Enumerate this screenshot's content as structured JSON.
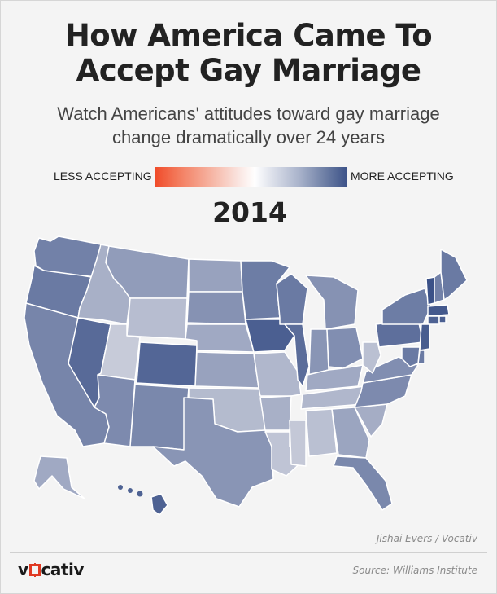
{
  "title_line1": "How America Came To",
  "title_line2": "Accept Gay Marriage",
  "subtitle_line1": "Watch Americans' attitudes toward gay marriage",
  "subtitle_line2": "change dramatically over 24 years",
  "legend": {
    "left_label": "LESS ACCEPTING",
    "right_label": "MORE ACCEPTING"
  },
  "year": "2014",
  "credit": "Jishai Evers / Vocativ",
  "brand": {
    "pre": "v",
    "post": "cativ"
  },
  "source": "Source: Williams Institute",
  "color_scale": {
    "low": "#f04a28",
    "mid": "#ffffff",
    "high": "#3c5288",
    "accent": "#e03a24"
  },
  "map": {
    "acceptance": {
      "WA": 0.65,
      "OR": 0.7,
      "CA": 0.62,
      "NV": 0.82,
      "ID": 0.3,
      "MT": 0.45,
      "WY": 0.2,
      "UT": 0.1,
      "AZ": 0.58,
      "CO": 0.85,
      "NM": 0.6,
      "ND": 0.4,
      "SD": 0.52,
      "NE": 0.35,
      "KS": 0.4,
      "OK": 0.22,
      "TX": 0.5,
      "MN": 0.68,
      "IA": 0.9,
      "MO": 0.25,
      "AR": 0.3,
      "LA": 0.15,
      "WI": 0.7,
      "IL": 0.8,
      "MS": 0.12,
      "MI": 0.52,
      "IN": 0.5,
      "OH": 0.55,
      "KY": 0.35,
      "TN": 0.25,
      "AL": 0.18,
      "GA": 0.38,
      "FL": 0.6,
      "SC": 0.32,
      "NC": 0.58,
      "VA": 0.55,
      "WV": 0.18,
      "PA": 0.78,
      "NY": 0.68,
      "VT": 1.0,
      "NH": 0.65,
      "ME": 0.7,
      "MA": 0.95,
      "CT": 0.88,
      "NJ": 0.92,
      "MD": 0.7,
      "DE": 0.7,
      "RI": 0.9,
      "AK": 0.35,
      "HI": 0.88
    }
  }
}
